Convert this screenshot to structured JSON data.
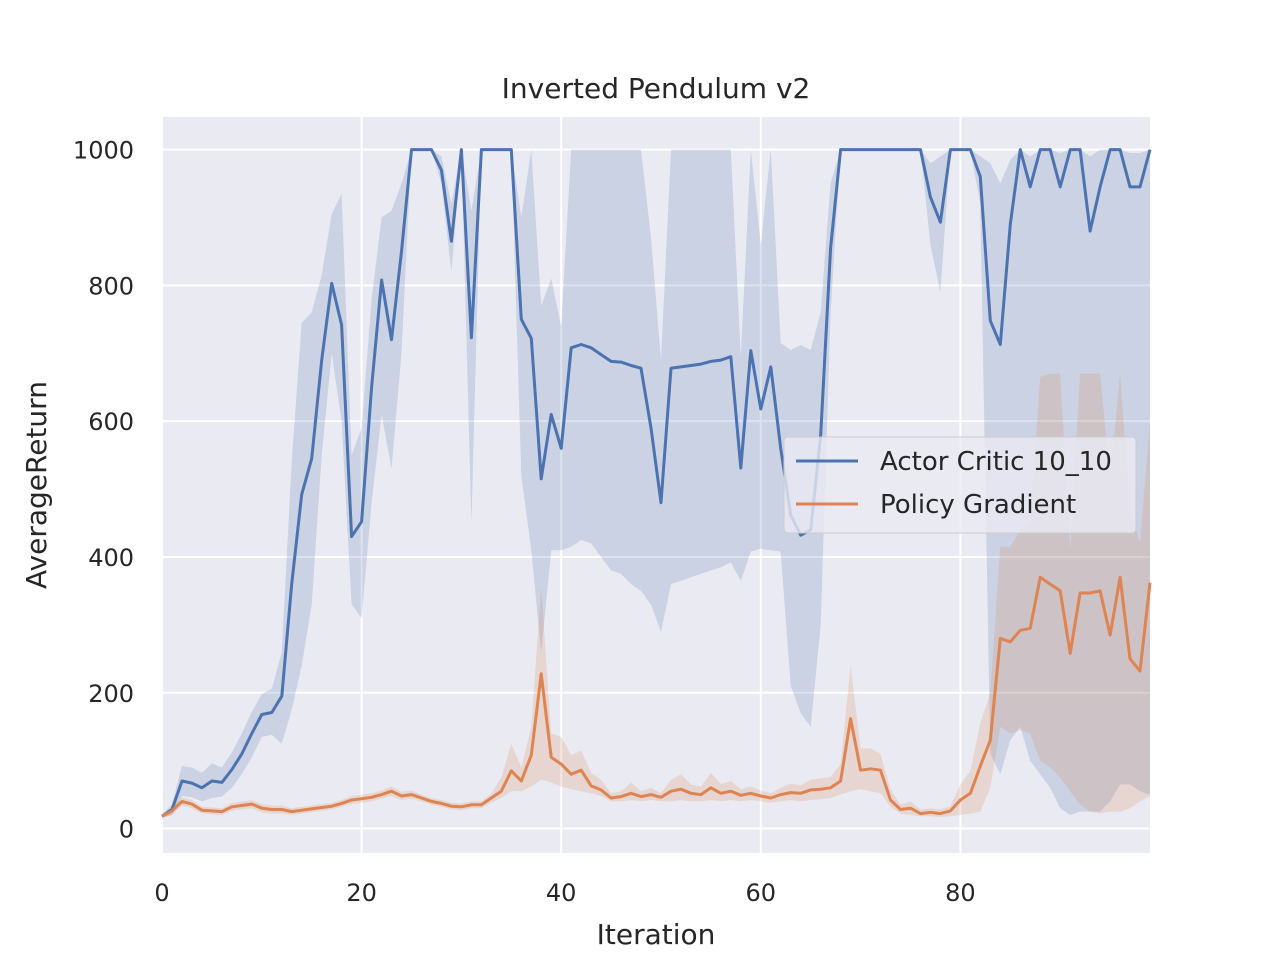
{
  "chart_data": {
    "type": "line",
    "title": "Inverted Pendulum v2",
    "xlabel": "Iteration",
    "ylabel": "AverageReturn",
    "xlim": [
      0,
      99
    ],
    "ylim": [
      -36,
      1048
    ],
    "xticks": [
      0,
      20,
      40,
      60,
      80
    ],
    "yticks": [
      0,
      200,
      400,
      600,
      800,
      1000
    ],
    "grid": true,
    "legend_location": "center-right",
    "series": [
      {
        "name": "Actor Critic 10_10",
        "color": "#4c72b0",
        "values": [
          18,
          28,
          70,
          67,
          60,
          70,
          68,
          87,
          110,
          140,
          168,
          171,
          195,
          360,
          492,
          545,
          690,
          803,
          742,
          430,
          452,
          650,
          808,
          720,
          850,
          1000,
          1000,
          1000,
          970,
          865,
          1000,
          723,
          1000,
          1000,
          1000,
          1000,
          750,
          722,
          515,
          610,
          560,
          708,
          713,
          708,
          698,
          688,
          687,
          682,
          678,
          590,
          480,
          678,
          680,
          682,
          684,
          688,
          690,
          695,
          531,
          704,
          618,
          680,
          560,
          462,
          432,
          440,
          580,
          855,
          1000,
          1000,
          1000,
          1000,
          1000,
          1000,
          1000,
          1000,
          1000,
          930,
          893,
          1000,
          1000,
          1000,
          960,
          748,
          713,
          890,
          1000,
          945,
          1000,
          1000,
          945,
          1000,
          1000,
          880,
          945,
          1000,
          1000,
          945,
          945,
          1000
        ],
        "band_low": [
          16,
          20,
          48,
          46,
          40,
          45,
          47,
          60,
          80,
          105,
          135,
          138,
          125,
          175,
          240,
          330,
          550,
          700,
          600,
          330,
          310,
          480,
          610,
          530,
          700,
          1000,
          1000,
          1000,
          950,
          820,
          1000,
          450,
          1000,
          1000,
          1000,
          1000,
          520,
          410,
          260,
          410,
          410,
          415,
          425,
          420,
          400,
          380,
          375,
          360,
          350,
          330,
          290,
          360,
          365,
          370,
          375,
          380,
          385,
          392,
          365,
          408,
          412,
          410,
          408,
          210,
          170,
          150,
          300,
          760,
          1000,
          1000,
          1000,
          1000,
          1000,
          1000,
          1000,
          1000,
          1000,
          860,
          790,
          1000,
          1000,
          1000,
          920,
          110,
          80,
          130,
          150,
          100,
          80,
          60,
          30,
          20,
          25,
          25,
          25,
          40,
          65,
          65,
          55,
          50
        ],
        "band_high": [
          20,
          36,
          92,
          90,
          82,
          96,
          90,
          112,
          140,
          172,
          198,
          206,
          260,
          540,
          745,
          760,
          815,
          905,
          935,
          550,
          590,
          780,
          900,
          910,
          950,
          1000,
          1000,
          1000,
          990,
          920,
          1000,
          910,
          1000,
          1000,
          1000,
          1000,
          900,
          1000,
          770,
          810,
          740,
          1000,
          1000,
          1000,
          1000,
          1000,
          1000,
          1000,
          1000,
          870,
          690,
          1000,
          1000,
          1000,
          1000,
          1000,
          1000,
          1000,
          695,
          1000,
          860,
          1000,
          715,
          705,
          712,
          705,
          760,
          950,
          1000,
          1000,
          1000,
          1000,
          1000,
          1000,
          1000,
          1000,
          1000,
          980,
          990,
          1000,
          1000,
          1000,
          990,
          980,
          950,
          985,
          1000,
          990,
          1000,
          1000,
          995,
          1000,
          1000,
          990,
          1000,
          1000,
          1000,
          995,
          995,
          1000
        ]
      },
      {
        "name": "Policy Gradient",
        "color": "#dd8452",
        "values": [
          18,
          26,
          40,
          36,
          27,
          26,
          25,
          32,
          34,
          36,
          30,
          28,
          28,
          25,
          27,
          29,
          31,
          33,
          37,
          42,
          44,
          46,
          50,
          55,
          48,
          50,
          45,
          40,
          37,
          33,
          32,
          35,
          35,
          45,
          55,
          85,
          70,
          108,
          228,
          105,
          95,
          80,
          86,
          63,
          57,
          45,
          47,
          52,
          47,
          50,
          46,
          55,
          58,
          52,
          50,
          60,
          52,
          55,
          49,
          52,
          48,
          45,
          50,
          53,
          52,
          57,
          58,
          60,
          70,
          162,
          86,
          88,
          86,
          42,
          28,
          30,
          22,
          24,
          22,
          26,
          42,
          52,
          92,
          130,
          280,
          275,
          292,
          295,
          370,
          360,
          350,
          258,
          347,
          347,
          350,
          285,
          370,
          250,
          232,
          362
        ],
        "band_low": [
          16,
          20,
          34,
          30,
          22,
          21,
          20,
          26,
          28,
          30,
          24,
          22,
          22,
          20,
          22,
          24,
          26,
          28,
          32,
          36,
          38,
          40,
          44,
          48,
          42,
          44,
          40,
          35,
          32,
          28,
          27,
          30,
          30,
          38,
          45,
          55,
          55,
          62,
          72,
          68,
          62,
          58,
          55,
          52,
          48,
          40,
          40,
          42,
          40,
          42,
          40,
          40,
          42,
          40,
          40,
          42,
          40,
          42,
          40,
          42,
          40,
          38,
          40,
          42,
          40,
          42,
          43,
          45,
          50,
          55,
          58,
          55,
          52,
          32,
          22,
          20,
          18,
          18,
          17,
          18,
          20,
          22,
          25,
          60,
          150,
          140,
          145,
          140,
          100,
          90,
          75,
          55,
          35,
          25,
          22,
          25,
          25,
          30,
          40,
          48
        ],
        "band_high": [
          20,
          32,
          46,
          42,
          32,
          31,
          30,
          38,
          40,
          42,
          36,
          34,
          34,
          30,
          32,
          34,
          36,
          38,
          42,
          48,
          50,
          52,
          56,
          62,
          54,
          56,
          50,
          45,
          42,
          38,
          37,
          40,
          40,
          52,
          75,
          125,
          90,
          150,
          355,
          140,
          135,
          108,
          115,
          82,
          72,
          52,
          55,
          68,
          55,
          60,
          52,
          72,
          80,
          65,
          62,
          82,
          65,
          70,
          58,
          62,
          56,
          52,
          60,
          66,
          64,
          72,
          74,
          76,
          95,
          240,
          118,
          118,
          110,
          58,
          35,
          40,
          28,
          30,
          28,
          33,
          65,
          85,
          155,
          200,
          415,
          415,
          440,
          450,
          665,
          670,
          670,
          410,
          670,
          670,
          670,
          515,
          670,
          470,
          420,
          600
        ]
      }
    ]
  }
}
